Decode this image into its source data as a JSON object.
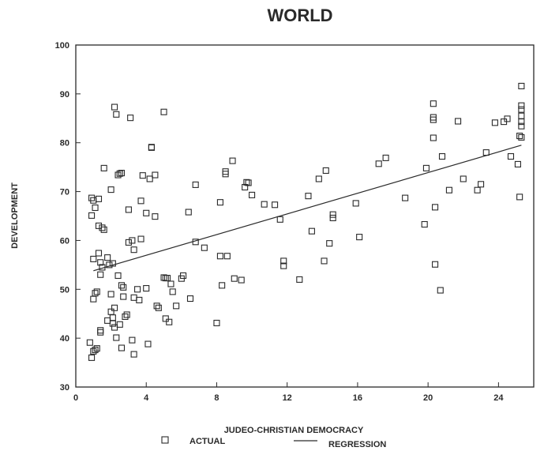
{
  "chart_data": {
    "type": "scatter",
    "title": "WORLD",
    "xlabel": "JUDEO-CHRISTIAN DEMOCRACY",
    "ylabel": "DEVELOPMENT",
    "xlim": [
      0,
      26
    ],
    "ylim": [
      30,
      100
    ],
    "xticks": [
      0,
      4,
      8,
      12,
      16,
      20,
      24
    ],
    "yticks": [
      30,
      40,
      50,
      60,
      70,
      80,
      90,
      100
    ],
    "grid": false,
    "legend_position": "bottom",
    "series": [
      {
        "name": "ACTUAL",
        "marker": "hollow-square",
        "points": [
          [
            0.8,
            39.1
          ],
          [
            0.9,
            36.0
          ],
          [
            1.0,
            37.3
          ],
          [
            1.1,
            37.6
          ],
          [
            1.2,
            37.9
          ],
          [
            0.9,
            65.1
          ],
          [
            1.0,
            68.2
          ],
          [
            0.9,
            68.7
          ],
          [
            1.1,
            66.7
          ],
          [
            1.0,
            56.2
          ],
          [
            1.1,
            49.2
          ],
          [
            1.0,
            48.0
          ],
          [
            1.3,
            57.4
          ],
          [
            1.2,
            49.5
          ],
          [
            1.3,
            68.5
          ],
          [
            1.4,
            55.5
          ],
          [
            1.3,
            63.0
          ],
          [
            1.5,
            62.6
          ],
          [
            1.6,
            62.2
          ],
          [
            1.6,
            74.8
          ],
          [
            1.5,
            54.5
          ],
          [
            1.4,
            53.0
          ],
          [
            1.4,
            41.6
          ],
          [
            1.4,
            41.2
          ],
          [
            1.8,
            56.5
          ],
          [
            1.8,
            43.6
          ],
          [
            1.9,
            55.0
          ],
          [
            2.0,
            70.4
          ],
          [
            2.0,
            49.0
          ],
          [
            2.0,
            45.4
          ],
          [
            2.1,
            44.2
          ],
          [
            2.1,
            43.0
          ],
          [
            2.2,
            42.2
          ],
          [
            2.1,
            55.3
          ],
          [
            2.2,
            46.2
          ],
          [
            2.3,
            40.1
          ],
          [
            2.4,
            52.8
          ],
          [
            2.2,
            87.3
          ],
          [
            2.3,
            85.8
          ],
          [
            2.4,
            73.4
          ],
          [
            2.5,
            73.7
          ],
          [
            2.6,
            73.8
          ],
          [
            2.5,
            42.8
          ],
          [
            2.6,
            50.8
          ],
          [
            2.7,
            48.5
          ],
          [
            2.6,
            38.0
          ],
          [
            2.7,
            50.4
          ],
          [
            2.8,
            44.4
          ],
          [
            2.9,
            44.8
          ],
          [
            3.0,
            59.6
          ],
          [
            3.0,
            66.3
          ],
          [
            3.1,
            85.1
          ],
          [
            3.2,
            60.0
          ],
          [
            3.3,
            58.1
          ],
          [
            3.3,
            48.3
          ],
          [
            3.2,
            39.6
          ],
          [
            3.3,
            36.7
          ],
          [
            3.5,
            50.0
          ],
          [
            3.6,
            47.8
          ],
          [
            3.7,
            60.3
          ],
          [
            3.7,
            68.1
          ],
          [
            3.8,
            73.3
          ],
          [
            4.0,
            65.6
          ],
          [
            4.0,
            50.2
          ],
          [
            4.1,
            38.8
          ],
          [
            4.2,
            72.6
          ],
          [
            4.3,
            79.0
          ],
          [
            4.3,
            79.1
          ],
          [
            4.5,
            73.4
          ],
          [
            4.5,
            64.9
          ],
          [
            4.6,
            46.6
          ],
          [
            4.7,
            46.2
          ],
          [
            5.0,
            86.3
          ],
          [
            5.0,
            52.4
          ],
          [
            5.1,
            52.3
          ],
          [
            5.1,
            44.0
          ],
          [
            5.2,
            52.3
          ],
          [
            5.3,
            43.3
          ],
          [
            5.4,
            51.1
          ],
          [
            5.5,
            49.5
          ],
          [
            5.7,
            46.6
          ],
          [
            6.0,
            52.2
          ],
          [
            6.1,
            52.8
          ],
          [
            6.4,
            65.8
          ],
          [
            6.5,
            48.1
          ],
          [
            6.8,
            71.4
          ],
          [
            6.8,
            59.7
          ],
          [
            7.3,
            58.5
          ],
          [
            8.0,
            43.1
          ],
          [
            8.2,
            67.8
          ],
          [
            8.2,
            56.8
          ],
          [
            8.3,
            50.8
          ],
          [
            8.5,
            74.1
          ],
          [
            8.5,
            73.6
          ],
          [
            8.6,
            56.8
          ],
          [
            8.9,
            76.3
          ],
          [
            9.0,
            52.2
          ],
          [
            9.4,
            51.9
          ],
          [
            9.6,
            70.9
          ],
          [
            9.7,
            71.9
          ],
          [
            9.8,
            71.8
          ],
          [
            10.0,
            69.3
          ],
          [
            10.7,
            67.4
          ],
          [
            11.3,
            67.3
          ],
          [
            11.6,
            64.3
          ],
          [
            11.8,
            55.8
          ],
          [
            11.8,
            54.8
          ],
          [
            12.7,
            52.0
          ],
          [
            13.2,
            69.1
          ],
          [
            13.4,
            61.9
          ],
          [
            13.8,
            72.6
          ],
          [
            14.1,
            55.8
          ],
          [
            14.2,
            74.3
          ],
          [
            14.4,
            59.4
          ],
          [
            14.6,
            65.3
          ],
          [
            14.6,
            64.6
          ],
          [
            15.9,
            67.6
          ],
          [
            16.1,
            60.7
          ],
          [
            17.2,
            75.7
          ],
          [
            17.6,
            76.9
          ],
          [
            18.7,
            68.7
          ],
          [
            19.8,
            63.3
          ],
          [
            19.9,
            74.8
          ],
          [
            20.3,
            81.0
          ],
          [
            20.3,
            84.7
          ],
          [
            20.3,
            85.2
          ],
          [
            20.3,
            88.0
          ],
          [
            20.4,
            66.8
          ],
          [
            20.4,
            55.1
          ],
          [
            20.7,
            49.8
          ],
          [
            20.8,
            77.2
          ],
          [
            21.2,
            70.3
          ],
          [
            21.7,
            84.4
          ],
          [
            22.0,
            72.6
          ],
          [
            22.8,
            70.3
          ],
          [
            23.0,
            71.5
          ],
          [
            23.3,
            78.0
          ],
          [
            23.8,
            84.1
          ],
          [
            24.3,
            84.3
          ],
          [
            24.5,
            84.9
          ],
          [
            24.7,
            77.2
          ],
          [
            25.1,
            75.6
          ],
          [
            25.2,
            68.9
          ],
          [
            25.2,
            81.4
          ],
          [
            25.3,
            81.1
          ],
          [
            25.3,
            83.4
          ],
          [
            25.3,
            84.3
          ],
          [
            25.3,
            85.5
          ],
          [
            25.3,
            86.8
          ],
          [
            25.3,
            87.6
          ],
          [
            25.3,
            91.6
          ]
        ]
      },
      {
        "name": "REGRESSION",
        "type": "line",
        "x": [
          1.0,
          25.3
        ],
        "y": [
          53.8,
          79.5
        ]
      }
    ]
  },
  "colors": {
    "ink": "#2a2a2a",
    "background": "#ffffff"
  }
}
